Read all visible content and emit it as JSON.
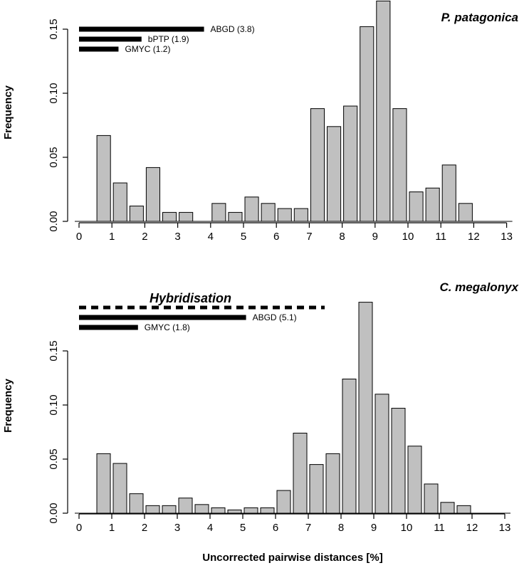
{
  "xlabel": "Uncorrected pairwise distances [%]",
  "chart_data": [
    {
      "type": "bar",
      "title": "P. patagonica",
      "xlabel": "Uncorrected pairwise distances [%]",
      "ylabel": "Frequency",
      "bin_width": 0.5,
      "x": [
        0,
        0.5,
        1,
        1.5,
        2,
        2.5,
        3,
        3.5,
        4,
        4.5,
        5,
        5.5,
        6,
        6.5,
        7,
        7.5,
        8,
        8.5,
        9,
        9.5,
        10,
        10.5,
        11,
        11.5,
        12,
        12.5
      ],
      "values": [
        0.0,
        0.067,
        0.03,
        0.012,
        0.042,
        0.007,
        0.007,
        0.0,
        0.014,
        0.007,
        0.019,
        0.014,
        0.01,
        0.01,
        0.088,
        0.074,
        0.09,
        0.152,
        0.172,
        0.088,
        0.023,
        0.026,
        0.044,
        0.014,
        0.0,
        0.0
      ],
      "xlim": [
        0,
        13
      ],
      "ylim": [
        0,
        0.15
      ],
      "xticks": [
        0,
        1,
        2,
        3,
        4,
        5,
        6,
        7,
        8,
        9,
        10,
        11,
        12,
        13
      ],
      "yticks": [
        0.0,
        0.05,
        0.1,
        0.15
      ],
      "ytick_labels": [
        "0.00",
        "0.05",
        "0.10",
        "0.15"
      ],
      "annotations": [
        {
          "type": "threshold-bar",
          "label": "ABGD (3.8)",
          "value": 3.8,
          "style": "solid"
        },
        {
          "type": "threshold-bar",
          "label": "bPTP (1.9)",
          "value": 1.9,
          "style": "solid"
        },
        {
          "type": "threshold-bar",
          "label": "GMYC (1.2)",
          "value": 1.2,
          "style": "solid"
        }
      ]
    },
    {
      "type": "bar",
      "title": "C. megalonyx",
      "xlabel": "Uncorrected pairwise distances [%]",
      "ylabel": "Frequency",
      "bin_width": 0.5,
      "x": [
        0,
        0.5,
        1,
        1.5,
        2,
        2.5,
        3,
        3.5,
        4,
        4.5,
        5,
        5.5,
        6,
        6.5,
        7,
        7.5,
        8,
        8.5,
        9,
        9.5,
        10,
        10.5,
        11,
        11.5,
        12,
        12.5
      ],
      "values": [
        0.0,
        0.055,
        0.046,
        0.018,
        0.007,
        0.007,
        0.014,
        0.008,
        0.005,
        0.003,
        0.005,
        0.005,
        0.021,
        0.074,
        0.045,
        0.055,
        0.124,
        0.195,
        0.11,
        0.097,
        0.062,
        0.027,
        0.01,
        0.007,
        0.0,
        0.0
      ],
      "xlim": [
        0,
        13
      ],
      "ylim": [
        0,
        0.15
      ],
      "xticks": [
        0,
        1,
        2,
        3,
        4,
        5,
        6,
        7,
        8,
        9,
        10,
        11,
        12,
        13
      ],
      "yticks": [
        0.0,
        0.05,
        0.1,
        0.15
      ],
      "ytick_labels": [
        "0.00",
        "0.05",
        "0.10",
        "0.15"
      ],
      "annotations": [
        {
          "type": "range-line",
          "label": "Hybridisation",
          "start": 0,
          "end": 7.5,
          "style": "dashed"
        },
        {
          "type": "threshold-bar",
          "label": "ABGD (5.1)",
          "value": 5.1,
          "style": "solid"
        },
        {
          "type": "threshold-bar",
          "label": "GMYC (1.8)",
          "value": 1.8,
          "style": "solid"
        }
      ]
    }
  ]
}
